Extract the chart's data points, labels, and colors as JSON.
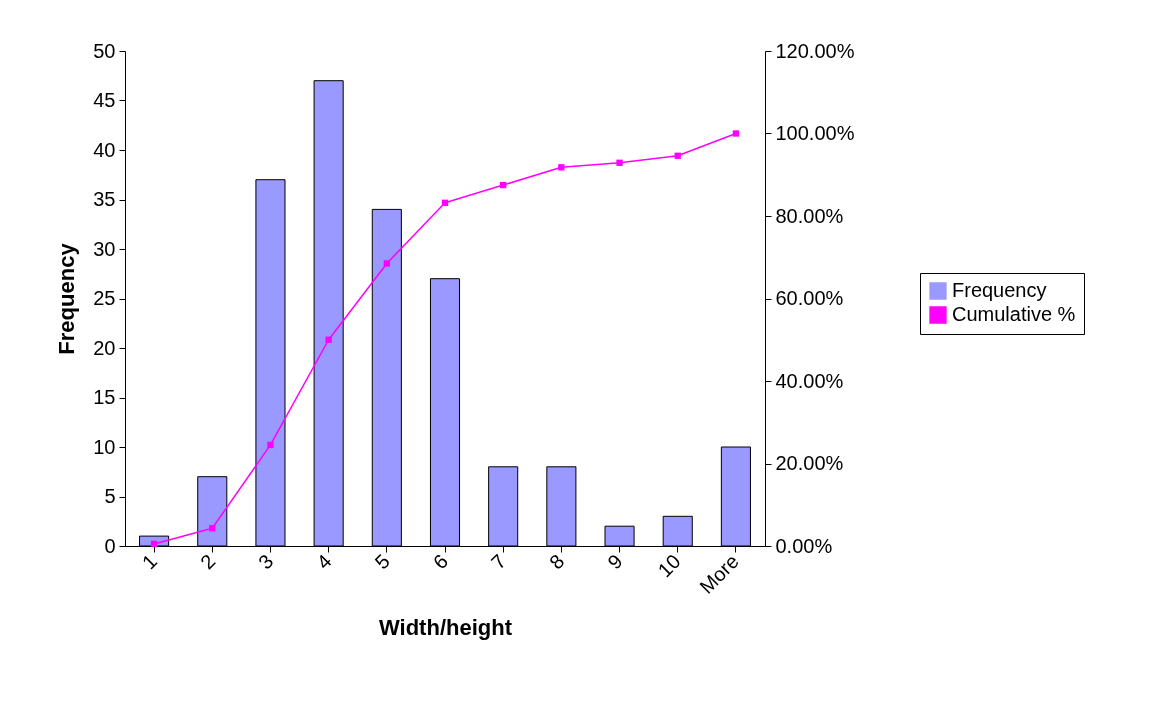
{
  "chart_data": {
    "type": "bar",
    "xlabel": "Width/height",
    "ylabel": "Frequency",
    "categories": [
      "1",
      "2",
      "3",
      "4",
      "5",
      "6",
      "7",
      "8",
      "9",
      "10",
      "More"
    ],
    "series": [
      {
        "name": "Frequency",
        "color": "#9999ff",
        "values": [
          1,
          7,
          37,
          47,
          34,
          27,
          8,
          8,
          2,
          3,
          10
        ]
      },
      {
        "name": "Cumulative %",
        "type": "line",
        "axis": "y2",
        "color": "#ff00ff",
        "marker": "square",
        "values": [
          0.5,
          4.3,
          24.5,
          50,
          68.5,
          83.2,
          87.5,
          91.8,
          92.9,
          94.6,
          100
        ]
      }
    ],
    "ylim": [
      0,
      50
    ],
    "yticks": [
      0,
      5,
      10,
      15,
      20,
      25,
      30,
      35,
      40,
      45,
      50
    ],
    "y2lim": [
      0,
      120
    ],
    "y2ticks": [
      {
        "value": 0,
        "label": "0.00%"
      },
      {
        "value": 20,
        "label": "20.00%"
      },
      {
        "value": 40,
        "label": "40.00%"
      },
      {
        "value": 60,
        "label": "60.00%"
      },
      {
        "value": 80,
        "label": "80.00%"
      },
      {
        "value": 100,
        "label": "100.00%"
      },
      {
        "value": 120,
        "label": "120.00%"
      }
    ],
    "grid": false,
    "legend": "right"
  }
}
